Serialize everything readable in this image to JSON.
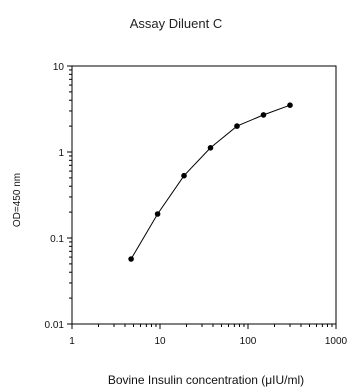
{
  "chart_data": {
    "type": "line",
    "title": "Assay Diluent C",
    "xlabel": "Bovine Insulin concentration (μIU/ml)",
    "ylabel": "OD=450 nm",
    "x_scale": "log",
    "y_scale": "log",
    "xlim": [
      1,
      1000
    ],
    "ylim": [
      0.01,
      10
    ],
    "x_ticks": [
      "1",
      "10",
      "100",
      "1000"
    ],
    "y_ticks": [
      "0.01",
      "0.1",
      "1",
      "10"
    ],
    "grid": false,
    "series": [
      {
        "x": [
          4.69,
          9.38,
          18.75,
          37.5,
          75,
          150,
          300
        ],
        "y": [
          0.057,
          0.19,
          0.53,
          1.12,
          2.0,
          2.7,
          3.5
        ],
        "color": "#000000"
      }
    ]
  }
}
